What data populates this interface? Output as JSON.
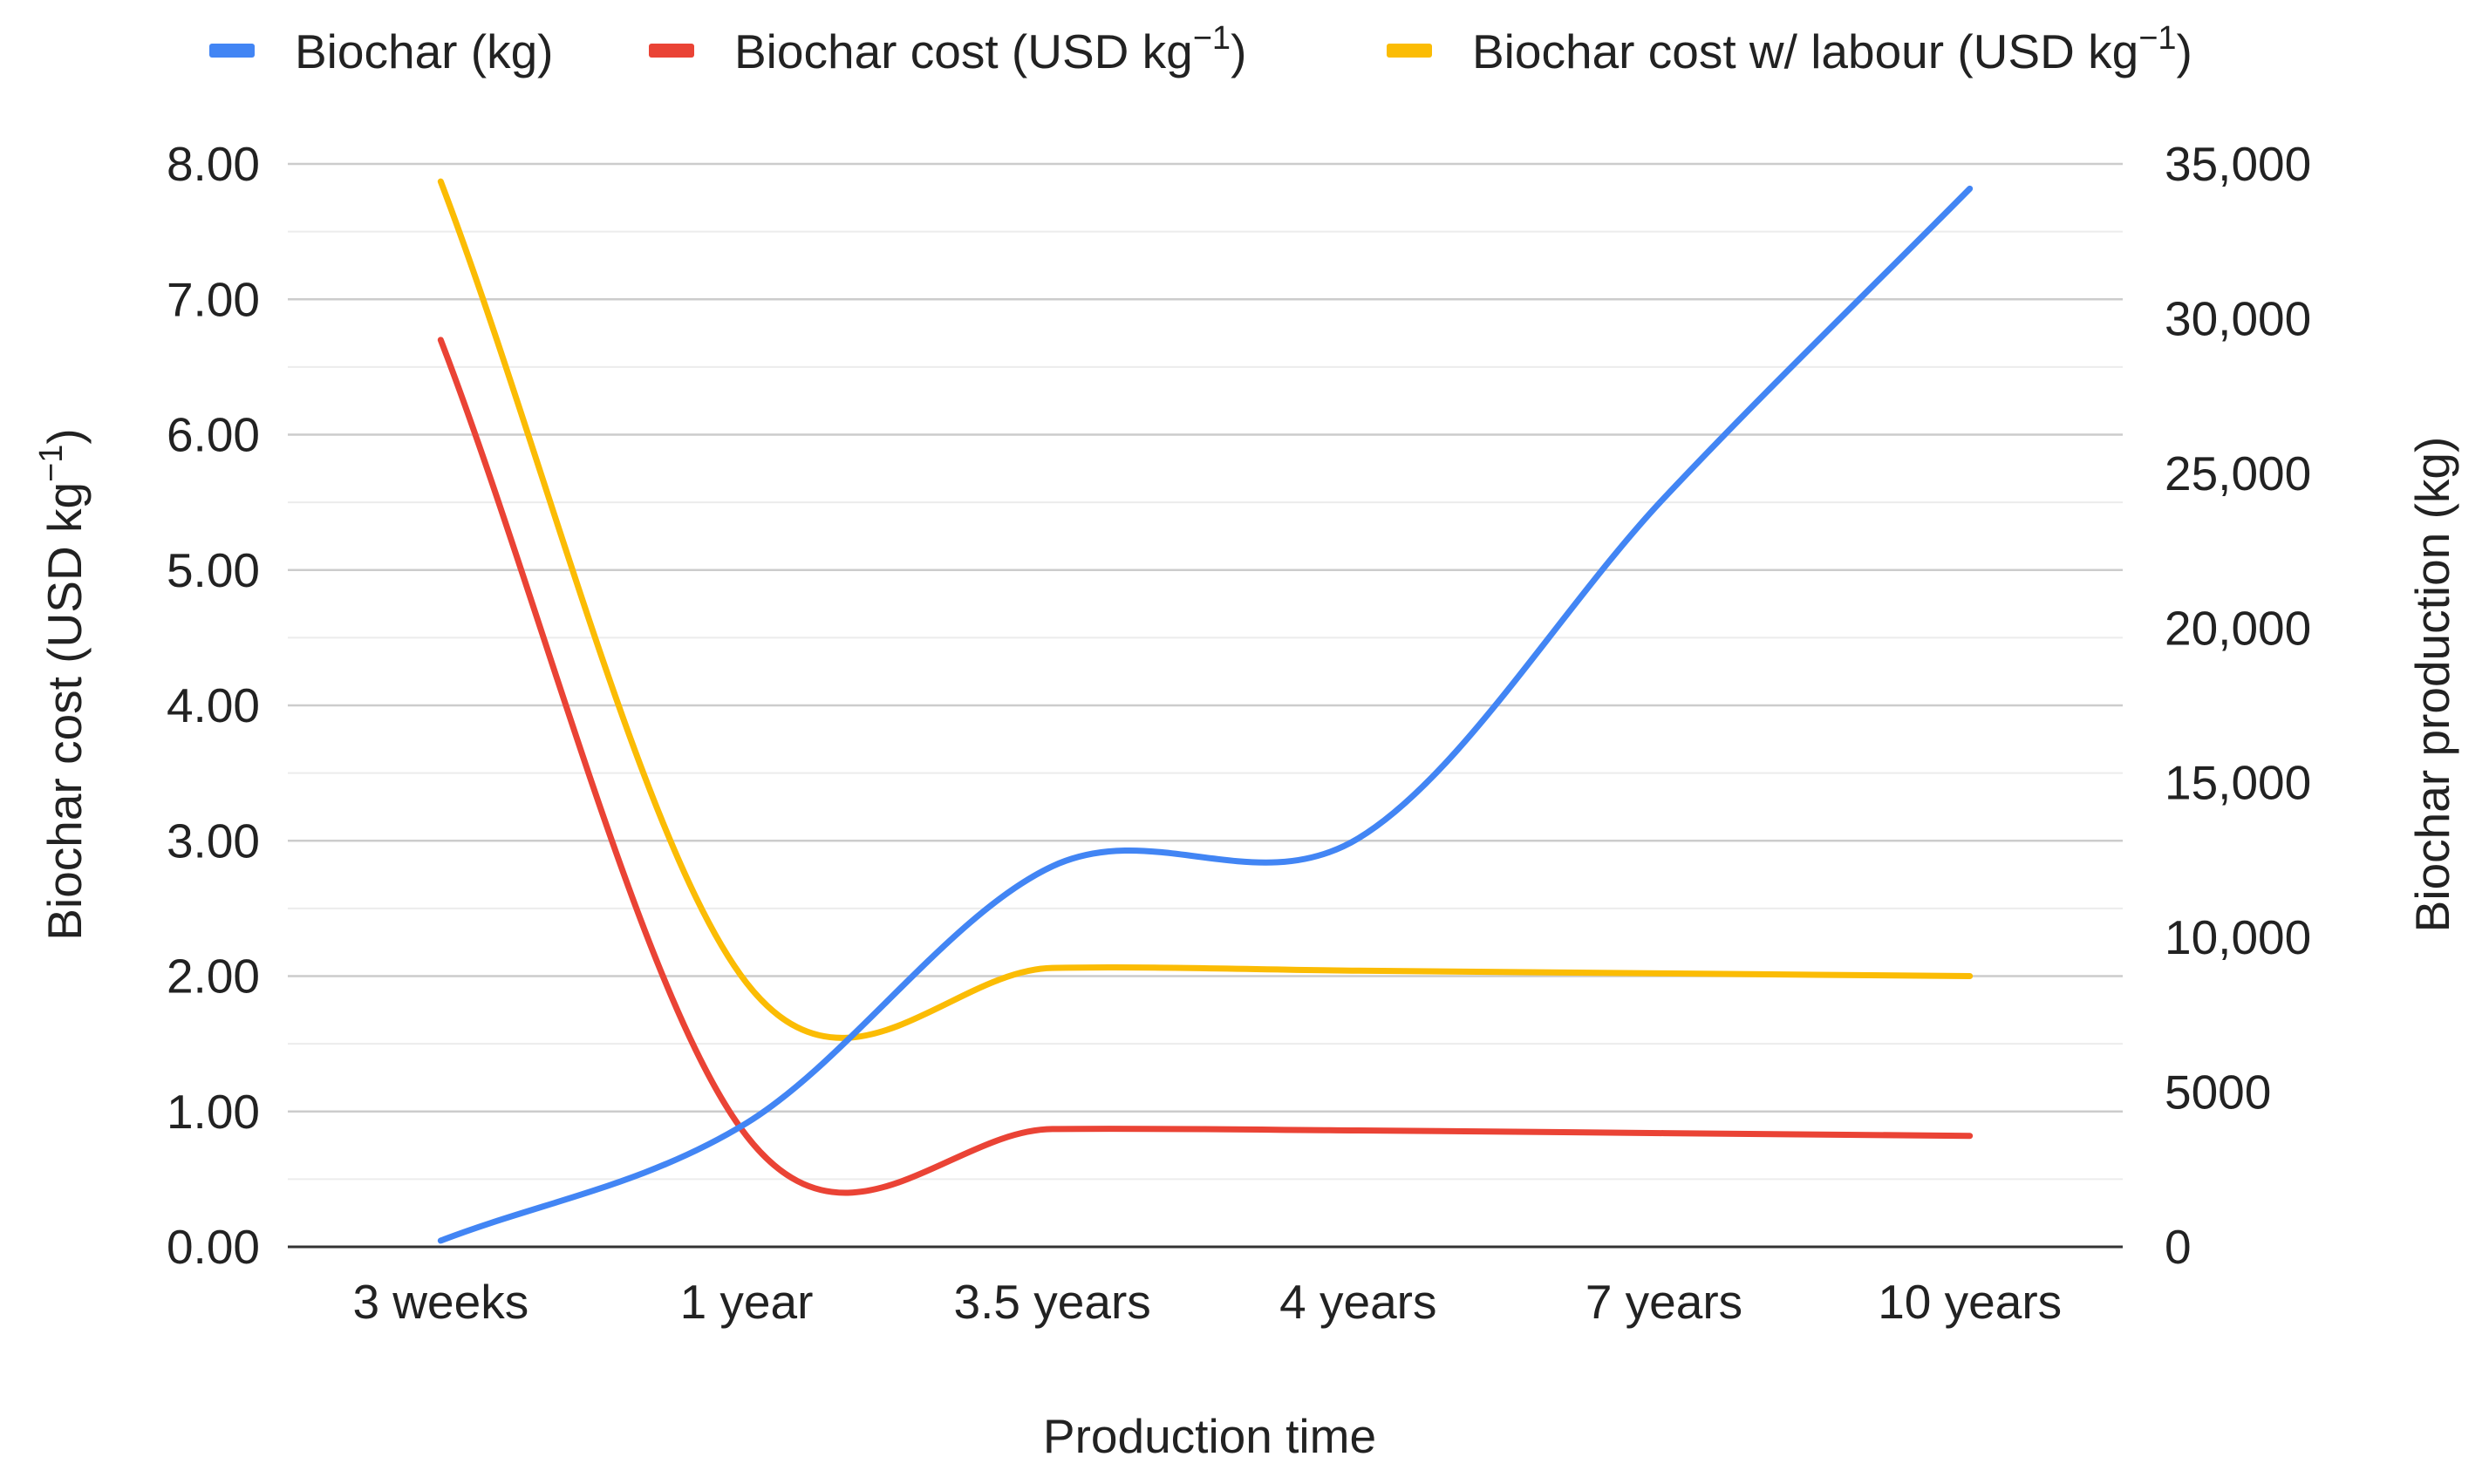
{
  "chart_data": {
    "type": "line",
    "categories": [
      "3 weeks",
      "1 year",
      "3.5 years",
      "4 years",
      "7 years",
      "10 years"
    ],
    "xlabel": "Production time",
    "ylabel_left": {
      "text": "Biochar cost (USD kg",
      "superscript": "−1",
      "suffix": ")"
    },
    "ylabel_right": "Biochar production (kg)",
    "y_left": {
      "ylim": [
        0,
        8
      ],
      "ticks": [
        "0.00",
        "1.00",
        "2.00",
        "3.00",
        "4.00",
        "5.00",
        "6.00",
        "7.00",
        "8.00"
      ]
    },
    "y_right": {
      "ylim": [
        0,
        35000
      ],
      "ticks": [
        "0",
        "5000",
        "10,000",
        "15,000",
        "20,000",
        "25,000",
        "30,000",
        "35,000"
      ]
    },
    "grid": true,
    "legend_position": "top",
    "series": [
      {
        "name": "Biochar (kg)",
        "legend": {
          "text": "Biochar (kg)",
          "superscript": "",
          "suffix": ""
        },
        "axis": "right",
        "color": "#4285F4",
        "values": [
          200,
          4000,
          12300,
          13200,
          24200,
          34200
        ]
      },
      {
        "name": "Biochar cost (USD kg−1)",
        "legend": {
          "text": "Biochar cost (USD kg",
          "superscript": "−1",
          "suffix": ")"
        },
        "axis": "left",
        "color": "#EA4335",
        "values": [
          6.7,
          0.82,
          0.87,
          0.86,
          0.84,
          0.82
        ]
      },
      {
        "name": "Biochar cost w/ labour (USD kg−1)",
        "legend": {
          "text": "Biochar cost w/ labour (USD kg",
          "superscript": "−1",
          "suffix": ")"
        },
        "axis": "left",
        "color": "#FBBC04",
        "values": [
          7.87,
          1.95,
          2.06,
          2.04,
          2.02,
          2.0
        ]
      }
    ]
  }
}
